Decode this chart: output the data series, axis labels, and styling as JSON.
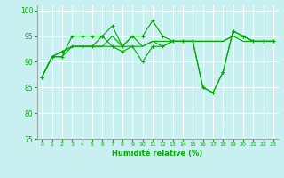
{
  "title": "",
  "xlabel": "Humidité relative (%)",
  "ylabel": "",
  "background_color": "#c8f0f0",
  "grid_color": "#ffffff",
  "line_color": "#00aa00",
  "xlim": [
    -0.5,
    23.5
  ],
  "ylim": [
    75,
    101
  ],
  "yticks": [
    75,
    80,
    85,
    90,
    95,
    100
  ],
  "xticks": [
    0,
    1,
    2,
    3,
    4,
    5,
    6,
    7,
    8,
    9,
    10,
    11,
    12,
    13,
    14,
    15,
    16,
    17,
    18,
    19,
    20,
    21,
    22,
    23
  ],
  "series": [
    [
      87,
      91,
      91,
      95,
      95,
      95,
      95,
      97,
      93,
      95,
      95,
      98,
      95,
      94,
      94,
      94,
      85,
      84,
      88,
      96,
      95,
      94,
      94,
      94
    ],
    [
      87,
      91,
      92,
      93,
      93,
      93,
      93,
      93,
      93,
      93,
      93,
      94,
      94,
      94,
      94,
      94,
      94,
      94,
      94,
      95,
      95,
      94,
      94,
      94
    ],
    [
      87,
      91,
      91,
      93,
      93,
      93,
      93,
      95,
      93,
      95,
      93,
      94,
      93,
      94,
      94,
      94,
      94,
      94,
      94,
      95,
      94,
      94,
      94,
      94
    ],
    [
      87,
      91,
      92,
      93,
      93,
      93,
      95,
      93,
      92,
      93,
      90,
      93,
      93,
      94,
      94,
      94,
      85,
      84,
      88,
      96,
      95,
      94,
      94,
      94
    ]
  ],
  "markers": [
    true,
    false,
    false,
    true
  ]
}
